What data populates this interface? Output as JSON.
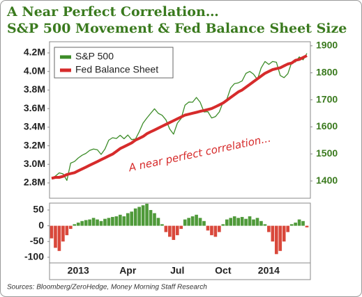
{
  "chart_data": [
    {
      "type": "line",
      "title": "A Near Perfect Correlation…",
      "subtitle": "S&P 500 Movement & Fed Balance Sheet Size",
      "annotation": "A near perfect correlation...",
      "legend": "top-left",
      "ylim": [
        2.635,
        4.32
      ],
      "yticks": [
        {
          "value": 2.8,
          "label": "2.8M"
        },
        {
          "value": 3.0,
          "label": "3.0M"
        },
        {
          "value": 3.2,
          "label": "3.2M"
        },
        {
          "value": 3.4,
          "label": "3.4M"
        },
        {
          "value": 3.6,
          "label": "3.6M"
        },
        {
          "value": 3.8,
          "label": "3.8M"
        },
        {
          "value": 4.0,
          "label": "4.0M"
        },
        {
          "value": 4.2,
          "label": "4.2M"
        }
      ],
      "y2lim": [
        1336,
        1915
      ],
      "y2ticks": [
        1400,
        1500,
        1600,
        1700,
        1800,
        1900
      ],
      "series": [
        {
          "name": "S&P 500",
          "color": "#3c8c28",
          "axis": "y2",
          "values": [
            1409,
            1418,
            1430,
            1426,
            1402,
            1466,
            1472,
            1485,
            1495,
            1502,
            1513,
            1518,
            1515,
            1498,
            1518,
            1551,
            1560,
            1557,
            1569,
            1556,
            1570,
            1553,
            1555,
            1582,
            1614,
            1633,
            1650,
            1667,
            1650,
            1643,
            1626,
            1592,
            1573,
            1614,
            1631,
            1680,
            1692,
            1691,
            1709,
            1691,
            1655,
            1656,
            1633,
            1638,
            1655,
            1691,
            1703,
            1744,
            1760,
            1763,
            1770,
            1798,
            1805,
            1795,
            1775,
            1818,
            1842,
            1831,
            1842,
            1839,
            1790,
            1782,
            1797,
            1838,
            1840,
            1859,
            1848,
            1872
          ]
        },
        {
          "name": "Fed Balance Sheet",
          "color": "#d62b2b",
          "values": [
            2.85,
            2.86,
            2.86,
            2.87,
            2.89,
            2.9,
            2.91,
            2.93,
            2.95,
            2.97,
            2.99,
            3.01,
            3.03,
            3.05,
            3.07,
            3.09,
            3.11,
            3.14,
            3.17,
            3.19,
            3.21,
            3.23,
            3.26,
            3.28,
            3.3,
            3.33,
            3.35,
            3.37,
            3.39,
            3.41,
            3.43,
            3.45,
            3.47,
            3.49,
            3.51,
            3.53,
            3.54,
            3.55,
            3.56,
            3.57,
            3.58,
            3.59,
            3.6,
            3.62,
            3.64,
            3.66,
            3.69,
            3.72,
            3.75,
            3.78,
            3.8,
            3.83,
            3.86,
            3.89,
            3.92,
            3.95,
            3.98,
            4.0,
            4.02,
            4.03,
            4.04,
            4.06,
            4.08,
            4.09,
            4.12,
            4.13,
            4.15,
            4.17
          ]
        }
      ]
    },
    {
      "type": "bar",
      "positive_color": "#4f9a3a",
      "negative_color": "#d9483b",
      "ylim": [
        -118,
        72
      ],
      "yticks": [
        -100,
        -50,
        0,
        50
      ],
      "categories": [
        null,
        null,
        null,
        null,
        null,
        null,
        null,
        "2013",
        null,
        null,
        null,
        null,
        null,
        null,
        null,
        null,
        null,
        null,
        null,
        null,
        "Apr",
        null,
        null,
        null,
        null,
        null,
        null,
        null,
        null,
        null,
        null,
        null,
        null,
        "Jul",
        null,
        null,
        null,
        null,
        null,
        null,
        null,
        null,
        null,
        null,
        null,
        "Oct",
        null,
        null,
        null,
        null,
        null,
        null,
        null,
        null,
        null,
        null,
        null,
        "2014",
        null,
        null,
        null,
        null,
        null,
        null,
        null,
        null,
        null,
        null
      ],
      "values": [
        -40,
        -70,
        -80,
        -50,
        -30,
        -10,
        5,
        10,
        15,
        18,
        20,
        25,
        20,
        15,
        22,
        25,
        28,
        30,
        35,
        30,
        40,
        45,
        55,
        60,
        65,
        70,
        50,
        40,
        25,
        5,
        -20,
        -35,
        -45,
        -30,
        -10,
        20,
        25,
        30,
        35,
        25,
        15,
        -15,
        -30,
        -35,
        -20,
        5,
        20,
        25,
        30,
        25,
        28,
        22,
        30,
        20,
        25,
        15,
        5,
        -20,
        -50,
        -90,
        -80,
        -50,
        -20,
        5,
        10,
        20,
        15,
        -5
      ]
    }
  ],
  "source": "Sources: Bloomberg/ZeroHedge, Money Morning Staff Research"
}
